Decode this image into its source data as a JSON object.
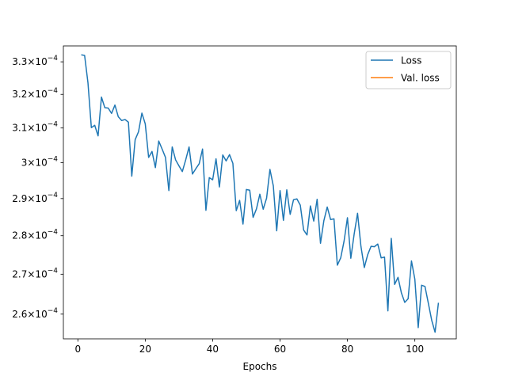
{
  "chart_data": {
    "type": "line",
    "title": "",
    "xlabel": "Epochs",
    "ylabel": "",
    "yscale": "log",
    "xlim": [
      -4.3,
      112.3
    ],
    "ylim": [
      0.000254,
      0.000335
    ],
    "grid": false,
    "legend_position": "top-right",
    "x_ticks": [
      0,
      20,
      40,
      60,
      80,
      100
    ],
    "x_tick_labels": [
      "0",
      "20",
      "40",
      "60",
      "80",
      "100"
    ],
    "y_ticks": [
      0.00026,
      0.00027,
      0.00028,
      0.00029,
      0.0003,
      0.00031,
      0.00032,
      0.00033
    ],
    "y_tick_labels": [
      {
        "mantissa": "2.6",
        "exp": "−4"
      },
      {
        "mantissa": "2.7",
        "exp": "−4"
      },
      {
        "mantissa": "2.8",
        "exp": "−4"
      },
      {
        "mantissa": "2.9",
        "exp": "−4"
      },
      {
        "mantissa": "3",
        "exp": "−4"
      },
      {
        "mantissa": "3.1",
        "exp": "−4"
      },
      {
        "mantissa": "3.2",
        "exp": "−4"
      },
      {
        "mantissa": "3.3",
        "exp": "−4"
      }
    ],
    "series": [
      {
        "name": "Loss",
        "color": "#1f77b4",
        "x": [
          1,
          2,
          3,
          4,
          5,
          6,
          7,
          8,
          9,
          10,
          11,
          12,
          13,
          14,
          15,
          16,
          17,
          18,
          19,
          20,
          21,
          22,
          23,
          24,
          25,
          26,
          27,
          28,
          29,
          30,
          31,
          32,
          33,
          34,
          35,
          36,
          37,
          38,
          39,
          40,
          41,
          42,
          43,
          44,
          45,
          46,
          47,
          48,
          49,
          50,
          51,
          52,
          53,
          54,
          55,
          56,
          57,
          58,
          59,
          60,
          61,
          62,
          63,
          64,
          65,
          66,
          67,
          68,
          69,
          70,
          71,
          72,
          73,
          74,
          75,
          76,
          77,
          78,
          79,
          80,
          81,
          82,
          83,
          84,
          85,
          86,
          87,
          88,
          89,
          90,
          91,
          92,
          93,
          94,
          95,
          96,
          97,
          98,
          99,
          100,
          101,
          102,
          103,
          104,
          105,
          106,
          107
        ],
        "values": [
          0.0003322,
          0.000332,
          0.0003235,
          0.0003101,
          0.0003108,
          0.0003077,
          0.0003192,
          0.000316,
          0.0003159,
          0.0003143,
          0.0003168,
          0.0003133,
          0.0003122,
          0.0003125,
          0.0003117,
          0.0002962,
          0.0003066,
          0.0003089,
          0.0003144,
          0.0003112,
          0.0003015,
          0.0003032,
          0.0002986,
          0.0003062,
          0.0003039,
          0.0003015,
          0.0002922,
          0.0003045,
          0.0003008,
          0.0002991,
          0.0002975,
          0.0003008,
          0.0003045,
          0.0002968,
          0.0002983,
          0.0002997,
          0.0003039,
          0.0002868,
          0.0002958,
          0.0002952,
          0.0003011,
          0.0002932,
          0.0003022,
          0.0003005,
          0.0003023,
          0.0002998,
          0.0002867,
          0.0002895,
          0.0002831,
          0.0002925,
          0.0002923,
          0.0002849,
          0.0002872,
          0.0002912,
          0.0002871,
          0.0002901,
          0.0002981,
          0.0002935,
          0.0002813,
          0.0002922,
          0.0002841,
          0.0002924,
          0.0002857,
          0.0002897,
          0.0002899,
          0.0002882,
          0.0002815,
          0.0002802,
          0.000288,
          0.0002839,
          0.0002898,
          0.000278,
          0.000284,
          0.0002877,
          0.0002843,
          0.0002845,
          0.0002723,
          0.0002742,
          0.0002786,
          0.0002848,
          0.0002741,
          0.0002805,
          0.000286,
          0.0002772,
          0.0002717,
          0.000275,
          0.0002772,
          0.0002771,
          0.0002778,
          0.0002742,
          0.0002744,
          0.0002608,
          0.0002793,
          0.0002674,
          0.0002692,
          0.0002653,
          0.0002629,
          0.0002638,
          0.0002734,
          0.0002687,
          0.0002567,
          0.0002672,
          0.0002669,
          0.0002627,
          0.0002585,
          0.0002556,
          0.0002628
        ]
      },
      {
        "name": "Val. loss",
        "color": "#ff7f0e",
        "x": [],
        "values": []
      }
    ]
  }
}
